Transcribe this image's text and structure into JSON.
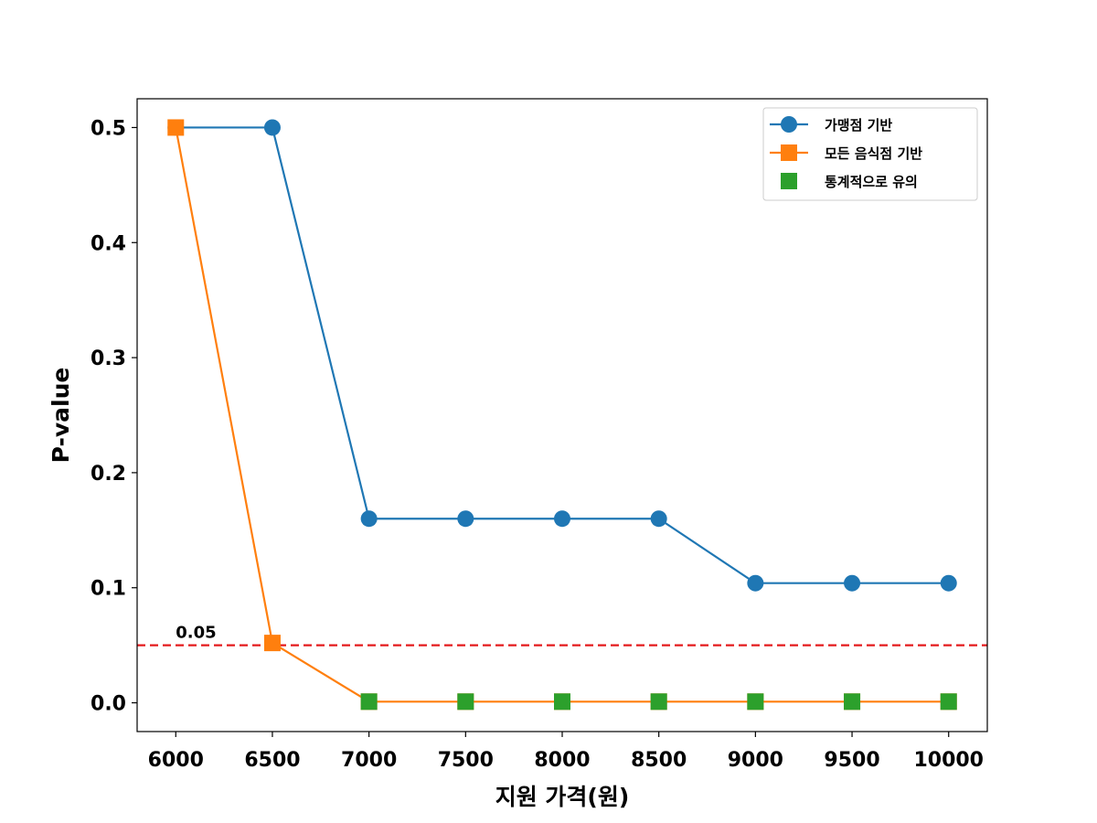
{
  "chart_data": {
    "type": "line",
    "title": "",
    "xlabel": "지원 가격(원)",
    "ylabel": "P-value",
    "x": [
      6000,
      6500,
      7000,
      7500,
      8000,
      8500,
      9000,
      9500,
      10000
    ],
    "xlim": [
      5800,
      10200
    ],
    "ylim": [
      -0.025,
      0.525
    ],
    "yticks": [
      0.0,
      0.1,
      0.2,
      0.3,
      0.4,
      0.5
    ],
    "ytick_labels": [
      "0.0",
      "0.1",
      "0.2",
      "0.3",
      "0.4",
      "0.5"
    ],
    "xtick_labels": [
      "6000",
      "6500",
      "7000",
      "7500",
      "8000",
      "8500",
      "9000",
      "9500",
      "10000"
    ],
    "grid": false,
    "legend_position": "top-right",
    "series": [
      {
        "name": "가맹점 기반",
        "marker": "circle",
        "color": "#1f77b4",
        "values": [
          0.5,
          0.5,
          0.16,
          0.16,
          0.16,
          0.16,
          0.104,
          0.104,
          0.104
        ]
      },
      {
        "name": "모든 음식점 기반",
        "marker": "square",
        "color": "#ff7f0e",
        "values": [
          0.5,
          0.052,
          0.001,
          0.001,
          0.001,
          0.001,
          0.001,
          0.001,
          0.001
        ]
      }
    ],
    "significant": {
      "name": "통계적으로 유의",
      "marker": "square",
      "color": "#2ca02c",
      "x": [
        7000,
        7500,
        8000,
        8500,
        9000,
        9500,
        10000
      ],
      "values": [
        0.001,
        0.001,
        0.001,
        0.001,
        0.001,
        0.001,
        0.001
      ]
    },
    "threshold": {
      "value": 0.05,
      "label": "0.05",
      "color": "#e41a1c",
      "style": "dashed"
    }
  }
}
